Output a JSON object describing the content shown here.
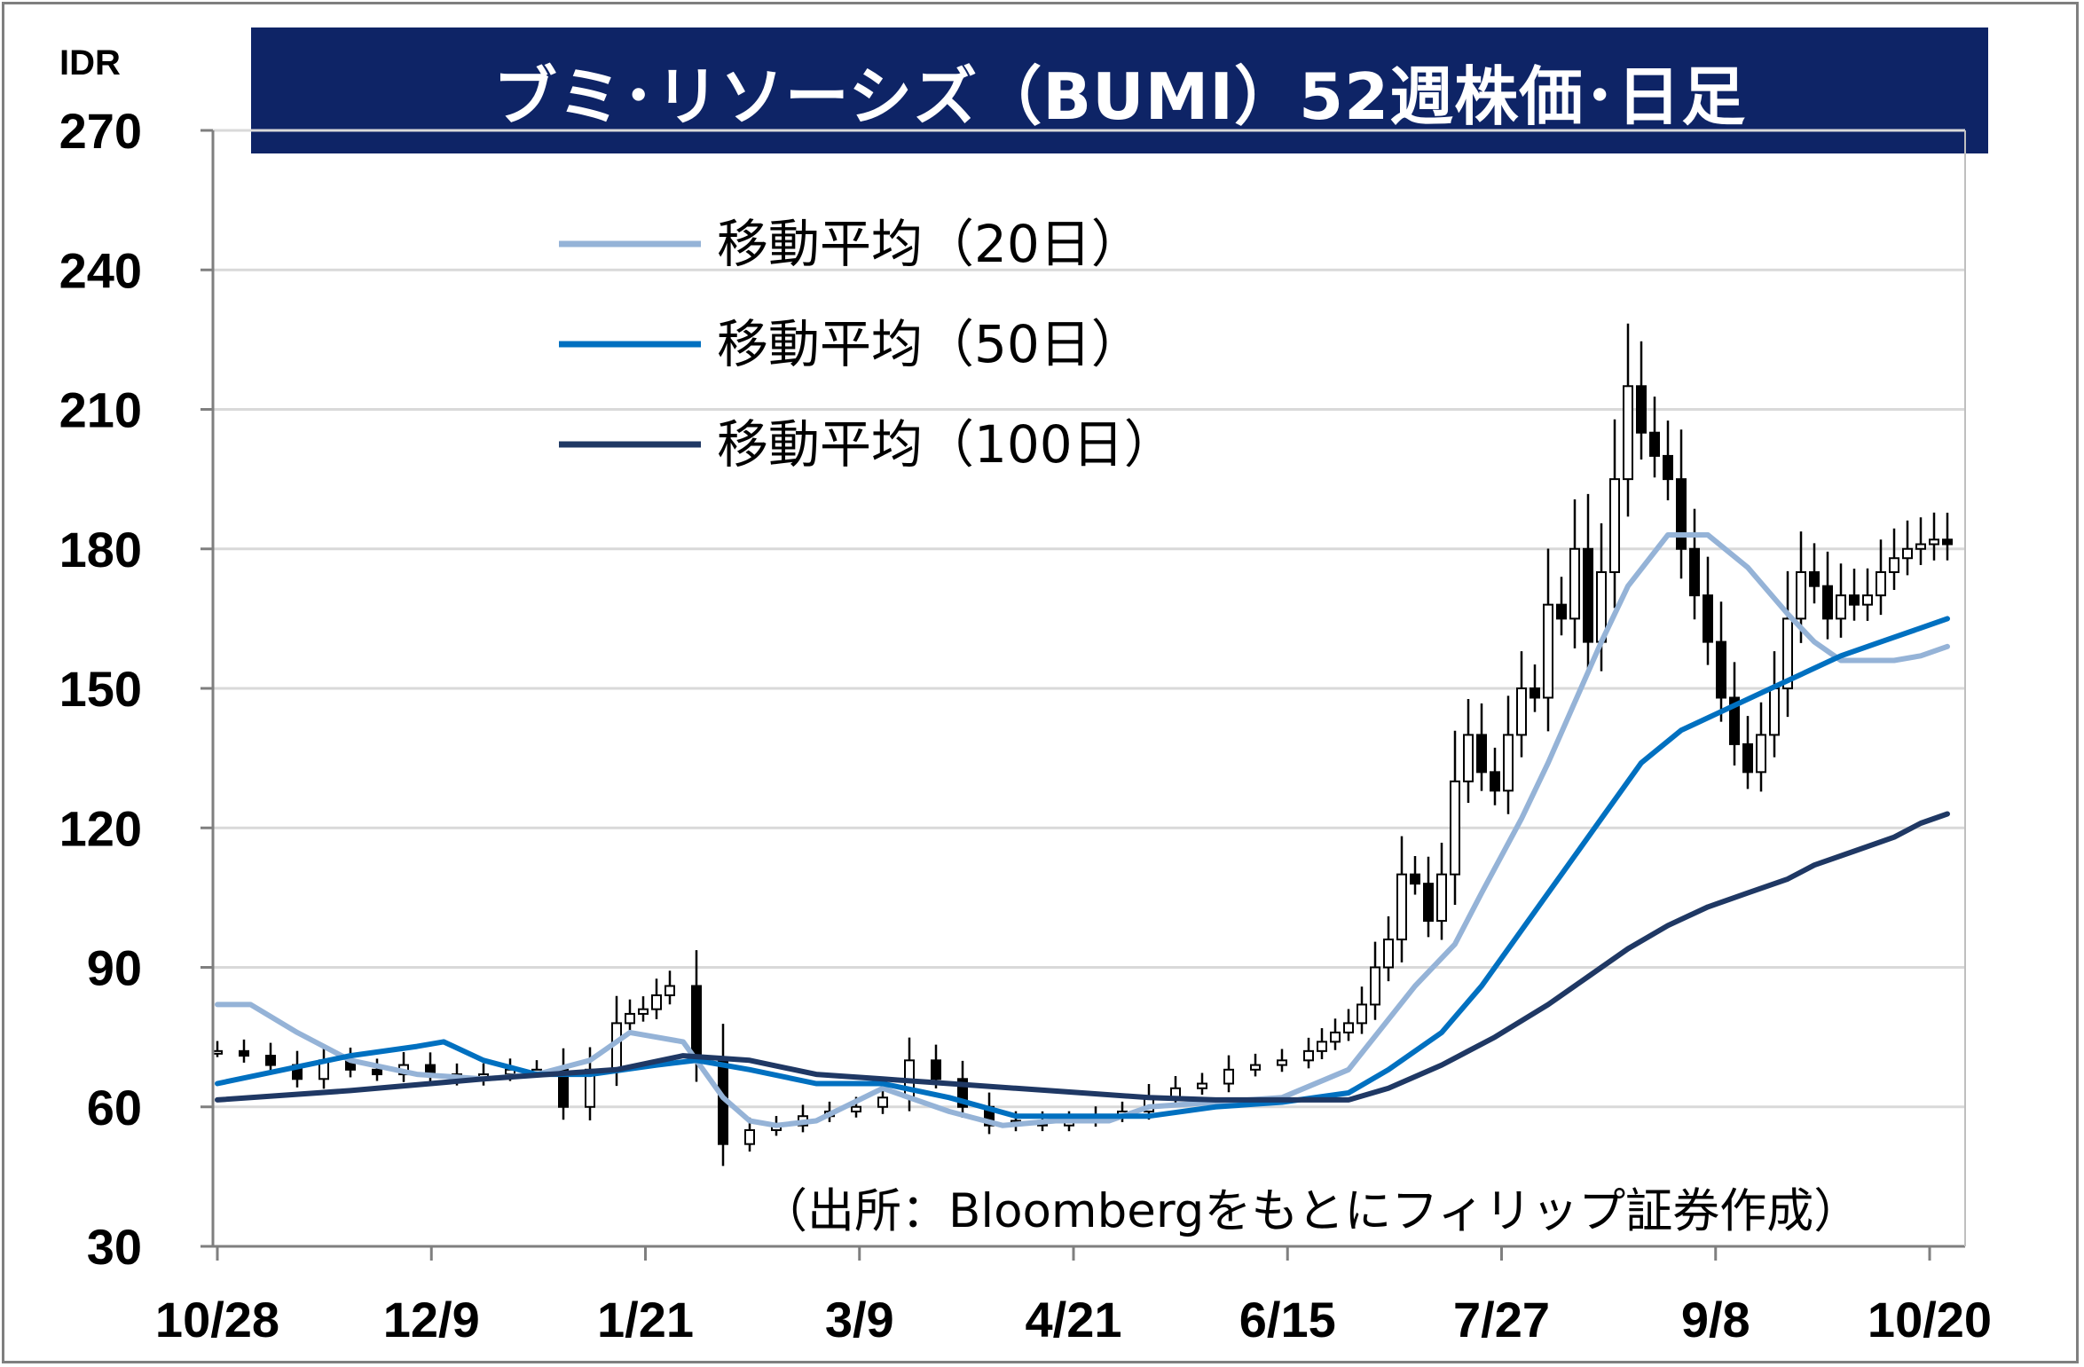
{
  "title": "ブミ･リソーシズ（BUMI）52週株価･日足",
  "unit_label": "IDR",
  "source_note": "（出所：Bloombergをもとにフィリップ証券作成）",
  "colors": {
    "title_bg": "#0e2466",
    "ma20": "#95b3d7",
    "ma50": "#0070c0",
    "ma100": "#1f3864",
    "candle": "#000000",
    "grid": "#d9d9d9"
  },
  "chart_data": {
    "type": "line",
    "chart_kind": "candlestick with moving averages",
    "ylim": [
      30,
      270
    ],
    "yticks": [
      "270",
      "240",
      "210",
      "180",
      "150",
      "120",
      "90",
      "60",
      "30"
    ],
    "xticks": [
      "10/28",
      "12/9",
      "1/21",
      "3/9",
      "4/21",
      "6/15",
      "7/27",
      "9/8",
      "10/20"
    ],
    "grid": true,
    "legend_position": "top-left",
    "series": [
      {
        "name": "移動平均（20日）",
        "x_index": [
          0,
          5,
          12,
          20,
          30,
          40,
          48,
          56,
          62,
          70,
          76,
          80,
          84,
          90,
          100,
          110,
          118,
          126,
          134,
          140,
          150,
          160,
          170,
          180,
          186,
          190,
          196,
          200,
          204,
          208,
          212,
          218,
          224,
          230,
          236,
          240,
          244,
          248,
          252,
          256,
          260
        ],
        "values": [
          82,
          82,
          76,
          70,
          67,
          66,
          67,
          70,
          76,
          74,
          62,
          57,
          56,
          57,
          64,
          59,
          56,
          57,
          57,
          60,
          61,
          62,
          68,
          86,
          95,
          106,
          122,
          134,
          147,
          160,
          172,
          183,
          183,
          176,
          166,
          160,
          156,
          156,
          156,
          157,
          159
        ]
      },
      {
        "name": "移動平均（50日）",
        "x_index": [
          0,
          10,
          20,
          30,
          34,
          40,
          48,
          56,
          66,
          72,
          80,
          90,
          100,
          110,
          120,
          130,
          140,
          150,
          160,
          170,
          176,
          184,
          190,
          196,
          202,
          208,
          214,
          220,
          226,
          232,
          238,
          244,
          250,
          256,
          260
        ],
        "values": [
          65,
          68,
          71,
          73,
          74,
          70,
          67,
          67,
          69,
          70,
          68,
          65,
          65,
          62,
          58,
          58,
          58,
          60,
          61,
          63,
          68,
          76,
          86,
          98,
          110,
          122,
          134,
          141,
          145,
          149,
          153,
          157,
          160,
          163,
          165
        ]
      },
      {
        "name": "移動平均（100日）",
        "x_index": [
          0,
          20,
          40,
          60,
          70,
          80,
          90,
          100,
          110,
          120,
          130,
          140,
          150,
          160,
          170,
          176,
          184,
          192,
          200,
          206,
          212,
          218,
          224,
          230,
          236,
          240,
          246,
          252,
          256,
          260
        ],
        "values": [
          61.5,
          63.5,
          66,
          68,
          71,
          70,
          67,
          66,
          65,
          64,
          63,
          62,
          61.5,
          61.5,
          61.5,
          64,
          69,
          75,
          82,
          88,
          94,
          99,
          103,
          106,
          109,
          112,
          115,
          118,
          121,
          123
        ]
      }
    ],
    "candles": {
      "note": "approximate daily closes read from the candlestick plot",
      "x_index": [
        0,
        4,
        8,
        12,
        16,
        20,
        24,
        28,
        32,
        36,
        40,
        44,
        48,
        52,
        56,
        60,
        62,
        64,
        66,
        68,
        72,
        76,
        80,
        84,
        88,
        92,
        96,
        100,
        104,
        108,
        112,
        116,
        120,
        124,
        128,
        132,
        136,
        140,
        144,
        148,
        152,
        156,
        160,
        164,
        166,
        168,
        170,
        172,
        174,
        176,
        178,
        180,
        182,
        184,
        186,
        188,
        190,
        192,
        194,
        196,
        198,
        200,
        202,
        204,
        206,
        208,
        210,
        212,
        214,
        216,
        218,
        220,
        222,
        224,
        226,
        228,
        230,
        232,
        234,
        236,
        238,
        240,
        242,
        244,
        246,
        248,
        250,
        252,
        254,
        256,
        258,
        260
      ],
      "values": [
        72,
        71,
        69,
        66,
        70,
        68,
        67,
        69,
        67,
        66,
        67,
        68,
        68,
        60,
        68,
        78,
        80,
        81,
        84,
        86,
        70,
        52,
        55,
        56,
        58,
        59,
        60,
        62,
        70,
        66,
        60,
        56,
        57,
        56,
        57,
        58,
        59,
        62,
        64,
        65,
        68,
        69,
        70,
        72,
        74,
        76,
        78,
        82,
        90,
        96,
        110,
        108,
        100,
        110,
        130,
        140,
        132,
        128,
        140,
        150,
        148,
        168,
        165,
        180,
        160,
        175,
        195,
        215,
        205,
        200,
        195,
        180,
        170,
        160,
        148,
        138,
        132,
        140,
        150,
        165,
        175,
        172,
        165,
        170,
        168,
        170,
        175,
        178,
        180,
        181,
        182,
        181
      ]
    }
  },
  "legend": {
    "items": [
      {
        "label": "移動平均（20日）",
        "color": "#95b3d7"
      },
      {
        "label": "移動平均（50日）",
        "color": "#0070c0"
      },
      {
        "label": "移動平均（100日）",
        "color": "#1f3864"
      }
    ]
  }
}
